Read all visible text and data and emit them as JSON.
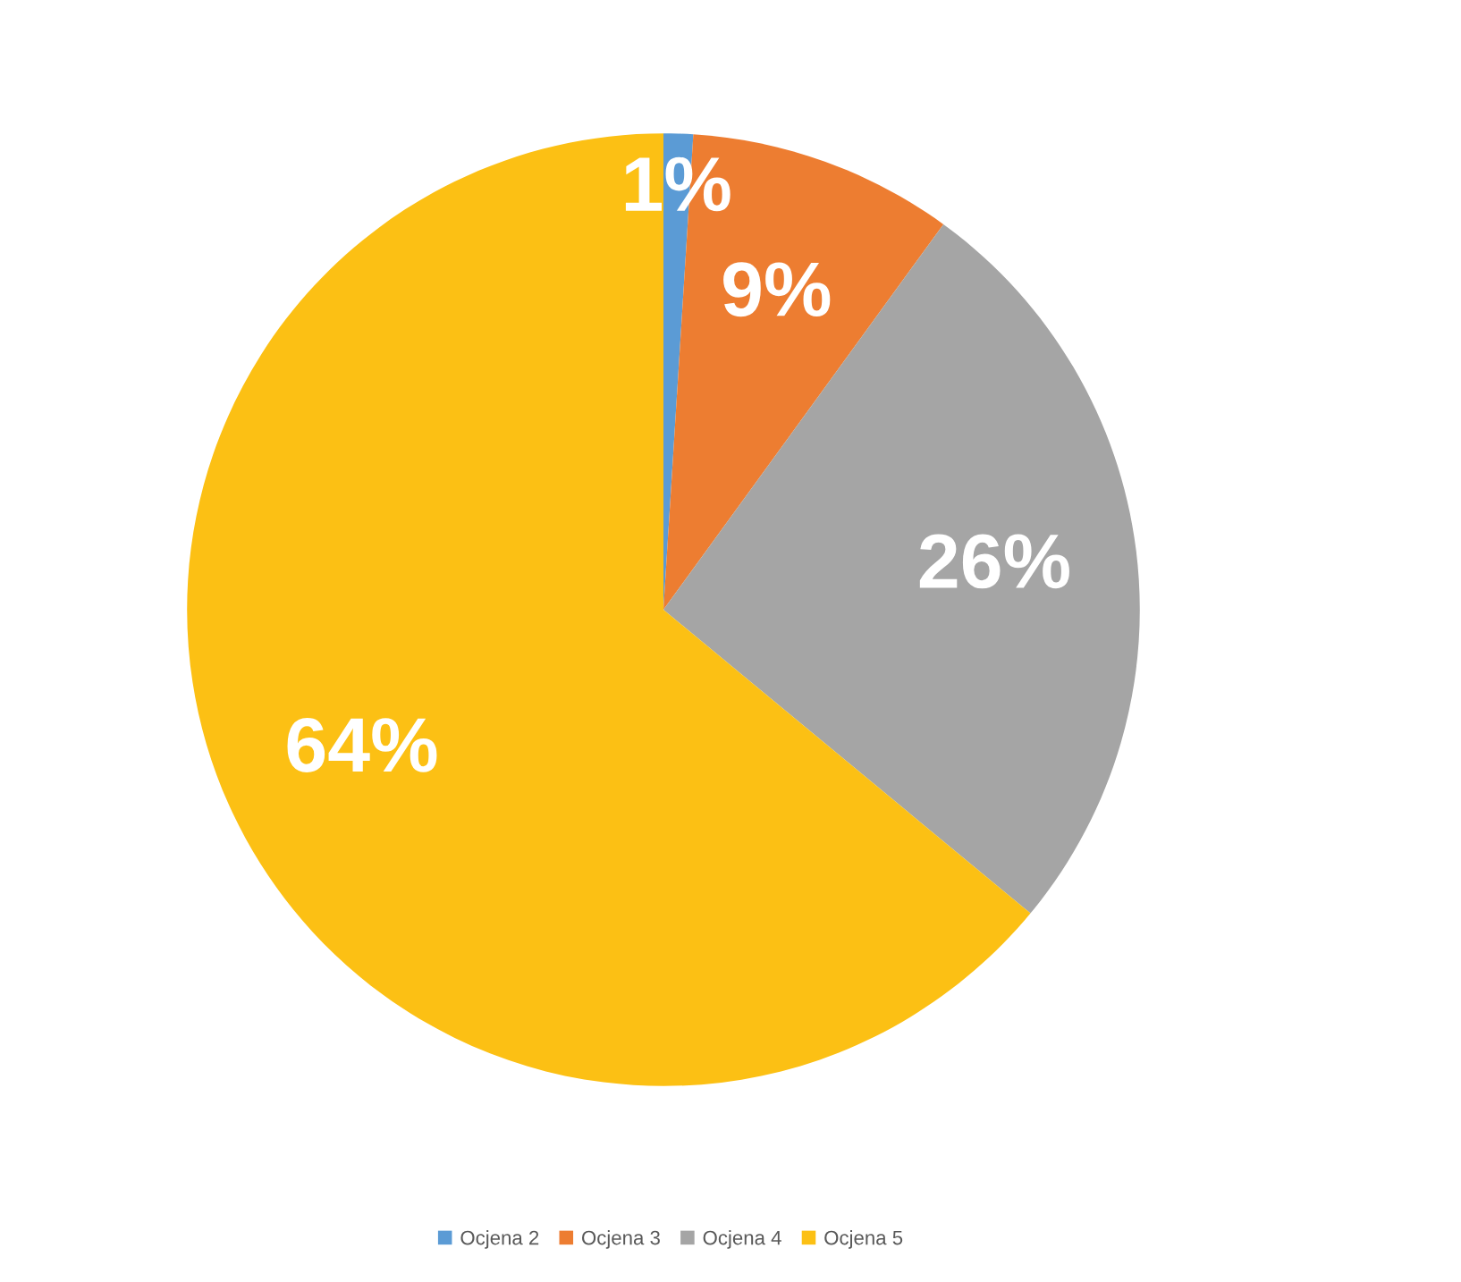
{
  "chart_data": {
    "type": "pie",
    "categories": [
      "Ocjena 2",
      "Ocjena 3",
      "Ocjena 4",
      "Ocjena 5"
    ],
    "values": [
      1,
      9,
      26,
      64
    ],
    "colors": [
      "#5b9bd5",
      "#ed7d31",
      "#a5a5a5",
      "#fcc014"
    ],
    "value_labels": [
      "1%",
      "9%",
      "26%",
      "64%"
    ],
    "legend": "bottom"
  }
}
